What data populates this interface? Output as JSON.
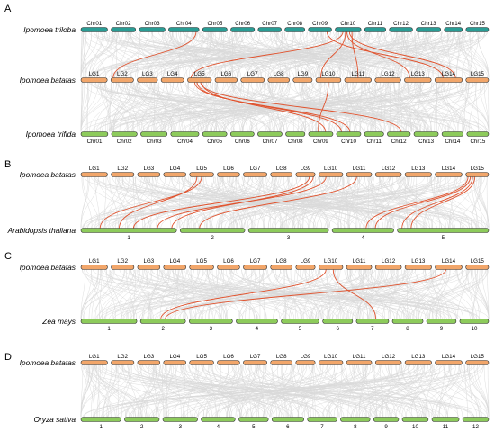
{
  "colors": {
    "triloba": "#2a9d95",
    "batatas": "#f2a66a",
    "green": "#8dcb5b",
    "background_links": "#d9d9d9",
    "highlight": "#e0522d",
    "bar_outline": "#333333"
  },
  "panels": [
    {
      "label": "A",
      "tracks": [
        {
          "species": "Ipomoea triloba",
          "color": "triloba",
          "label_pos": "above",
          "chromosomes": [
            "Chr01",
            "Chr02",
            "Chr03",
            "Chr04",
            "Chr05",
            "Chr06",
            "Chr07",
            "Chr08",
            "Chr09",
            "Chr10",
            "Chr11",
            "Chr12",
            "Chr13",
            "Chr14",
            "Chr15"
          ]
        },
        {
          "species": "Ipomoea batatas",
          "color": "batatas",
          "label_pos": "above",
          "chromosomes": [
            "LG1",
            "LG2",
            "LG3",
            "LG4",
            "LG5",
            "LG6",
            "LG7",
            "LG8",
            "LG9",
            "LG10",
            "LG11",
            "LG12",
            "LG13",
            "LG14",
            "LG15"
          ]
        },
        {
          "species": "Ipomoea trifida",
          "color": "green",
          "label_pos": "below",
          "chromosomes": [
            "Chr01",
            "Chr02",
            "Chr03",
            "Chr04",
            "Chr05",
            "Chr06",
            "Chr07",
            "Chr08",
            "Chr09",
            "Chr10",
            "Chr11",
            "Chr12",
            "Chr13",
            "Chr14",
            "Chr15"
          ]
        }
      ]
    },
    {
      "label": "B",
      "tracks": [
        {
          "species": "Ipomoea batatas",
          "color": "batatas",
          "label_pos": "above",
          "chromosomes": [
            "LG1",
            "LG2",
            "LG3",
            "LG4",
            "LG5",
            "LG6",
            "LG7",
            "LG8",
            "LG9",
            "LG10",
            "LG11",
            "LG12",
            "LG13",
            "LG14",
            "LG15"
          ]
        },
        {
          "species": "Arabidopsis thaliana",
          "color": "green",
          "label_pos": "below",
          "chromosomes": [
            "1",
            "2",
            "3",
            "4",
            "5"
          ]
        }
      ]
    },
    {
      "label": "C",
      "tracks": [
        {
          "species": "Ipomoea batatas",
          "color": "batatas",
          "label_pos": "above",
          "chromosomes": [
            "LG1",
            "LG2",
            "LG3",
            "LG4",
            "LG5",
            "LG6",
            "LG7",
            "LG8",
            "LG9",
            "LG10",
            "LG11",
            "LG12",
            "LG13",
            "LG14",
            "LG15"
          ]
        },
        {
          "species": "Zea mays",
          "color": "green",
          "label_pos": "below",
          "chromosomes": [
            "1",
            "2",
            "3",
            "4",
            "5",
            "6",
            "7",
            "8",
            "9",
            "10"
          ]
        }
      ]
    },
    {
      "label": "D",
      "tracks": [
        {
          "species": "Ipomoea batatas",
          "color": "batatas",
          "label_pos": "above",
          "chromosomes": [
            "LG1",
            "LG2",
            "LG3",
            "LG4",
            "LG5",
            "LG6",
            "LG7",
            "LG8",
            "LG9",
            "LG10",
            "LG11",
            "LG12",
            "LG13",
            "LG14",
            "LG15"
          ]
        },
        {
          "species": "Oryza sativa",
          "color": "green",
          "label_pos": "below",
          "chromosomes": [
            "1",
            "2",
            "3",
            "4",
            "5",
            "6",
            "7",
            "8",
            "9",
            "10",
            "11",
            "12"
          ]
        }
      ]
    }
  ]
}
